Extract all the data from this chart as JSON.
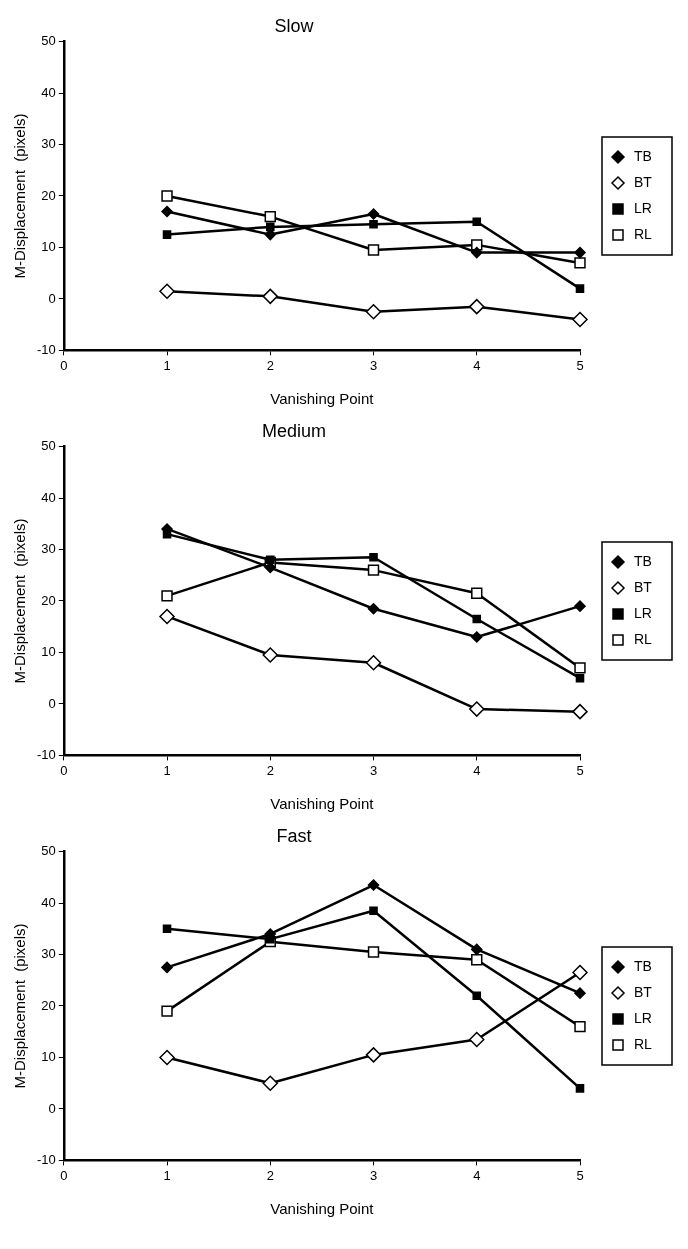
{
  "chart_data": [
    {
      "type": "line",
      "title": "Slow",
      "xlabel": "Vanishing Point",
      "ylabel": "M-Displacement  (pixels)",
      "x": [
        1,
        2,
        3,
        4,
        5
      ],
      "xlim": [
        0,
        5
      ],
      "xticks": [
        0,
        1,
        2,
        3,
        4,
        5
      ],
      "ylim": [
        -10,
        50
      ],
      "yticks": [
        -10,
        0,
        10,
        20,
        30,
        40,
        50
      ],
      "grid": false,
      "legend": "right",
      "line_style": "solid",
      "series": [
        {
          "name": "TB",
          "color": "#000000",
          "marker": "diamond",
          "values": [
            17,
            12.5,
            16.5,
            9,
            9
          ]
        },
        {
          "name": "BT",
          "color": "#000000",
          "marker": "diamond",
          "values": [
            1.5,
            0.5,
            -2.5,
            -1.5,
            -4
          ]
        },
        {
          "name": "LR",
          "color": "#000000",
          "marker": "square",
          "values": [
            12.5,
            14,
            14.5,
            15,
            2
          ]
        },
        {
          "name": "RL",
          "color": "#000000",
          "marker": "square",
          "values": [
            20,
            16,
            9.5,
            10.5,
            7
          ]
        }
      ]
    },
    {
      "type": "line",
      "title": "Medium",
      "xlabel": "Vanishing Point",
      "ylabel": "M-Displacement  (pixels)",
      "x": [
        1,
        2,
        3,
        4,
        5
      ],
      "xlim": [
        0,
        5
      ],
      "xticks": [
        0,
        1,
        2,
        3,
        4,
        5
      ],
      "ylim": [
        -10,
        50
      ],
      "yticks": [
        -10,
        0,
        10,
        20,
        30,
        40,
        50
      ],
      "grid": false,
      "legend": "right",
      "line_style": "solid",
      "series": [
        {
          "name": "TB",
          "color": "#000000",
          "marker": "diamond",
          "values": [
            34,
            26.5,
            18.5,
            13,
            19
          ]
        },
        {
          "name": "BT",
          "color": "#000000",
          "marker": "diamond",
          "values": [
            17,
            9.5,
            8,
            -1,
            -1.5
          ]
        },
        {
          "name": "LR",
          "color": "#000000",
          "marker": "square",
          "values": [
            33,
            28,
            28.5,
            16.5,
            5
          ]
        },
        {
          "name": "RL",
          "color": "#000000",
          "marker": "square",
          "values": [
            21,
            27.5,
            26,
            21.5,
            7
          ]
        }
      ]
    },
    {
      "type": "line",
      "title": "Fast",
      "xlabel": "Vanishing Point",
      "ylabel": "M-Displacement  (pixels)",
      "x": [
        1,
        2,
        3,
        4,
        5
      ],
      "xlim": [
        0,
        5
      ],
      "xticks": [
        0,
        1,
        2,
        3,
        4,
        5
      ],
      "ylim": [
        -10,
        50
      ],
      "yticks": [
        -10,
        0,
        10,
        20,
        30,
        40,
        50
      ],
      "grid": false,
      "legend": "right",
      "line_style": "solid",
      "series": [
        {
          "name": "TB",
          "color": "#000000",
          "marker": "diamond",
          "values": [
            27.5,
            34,
            43.5,
            31,
            22.5
          ]
        },
        {
          "name": "BT",
          "color": "#000000",
          "marker": "diamond",
          "values": [
            10,
            5,
            10.5,
            13.5,
            26.5
          ]
        },
        {
          "name": "LR",
          "color": "#000000",
          "marker": "square",
          "values": [
            35,
            33,
            38.5,
            22,
            4
          ]
        },
        {
          "name": "RL",
          "color": "#000000",
          "marker": "square",
          "values": [
            19,
            32.5,
            30.5,
            29,
            16
          ]
        }
      ]
    }
  ]
}
